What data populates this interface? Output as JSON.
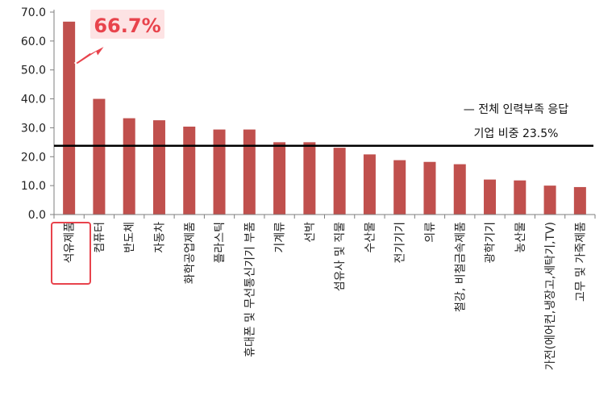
{
  "chart_data": {
    "type": "bar",
    "title": "",
    "xlabel": "",
    "ylabel": "",
    "ylim": [
      0,
      70
    ],
    "yticks": [
      "0.0",
      "10.0",
      "20.0",
      "30.0",
      "40.0",
      "50.0",
      "60.0",
      "70.0"
    ],
    "categories": [
      "석유제품",
      "컴퓨터",
      "반도체",
      "자동차",
      "화학공업제품",
      "플라스틱",
      "휴대폰 및 무선통신기기 부품",
      "기계류",
      "선박",
      "섬유사 및 직물",
      "수산물",
      "전기기기",
      "의류",
      "철강, 비철금속제품",
      "광학기기",
      "농산물",
      "가전(에어컨,냉장고,세탁기,TV)",
      "고무 및 가죽제품"
    ],
    "values": [
      66.7,
      40.0,
      33.3,
      32.6,
      30.4,
      29.4,
      29.4,
      25.0,
      25.0,
      23.1,
      20.8,
      18.8,
      18.2,
      17.4,
      12.1,
      11.8,
      10.0,
      9.5
    ],
    "bar_color": "#c0504d",
    "grid": false,
    "reference_line": {
      "value": 23.5,
      "line1": "— 전체 인력부족 응답",
      "line2": "기업 비중 23.5%",
      "color": "#000000"
    },
    "highlight": {
      "category_index": 0,
      "label": "66.7%",
      "color": "#e8434c",
      "box_fill": "#fde3e4"
    }
  }
}
